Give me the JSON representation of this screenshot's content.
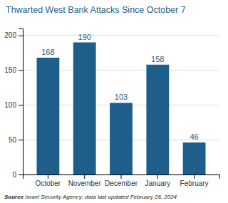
{
  "chart_data": {
    "type": "bar",
    "title": "Thwarted West Bank Attacks Since October 7",
    "categories": [
      "October",
      "November",
      "December",
      "January",
      "February"
    ],
    "values": [
      168,
      190,
      103,
      158,
      46
    ],
    "color": "#1d5f8a",
    "ylim": [
      0,
      210
    ],
    "yticks": [
      0,
      50,
      100,
      150,
      200
    ],
    "grid": true,
    "data_labels": true,
    "annotations": [
      "Source",
      " Israel Security Agency; data last updated February 26, 2024"
    ]
  }
}
